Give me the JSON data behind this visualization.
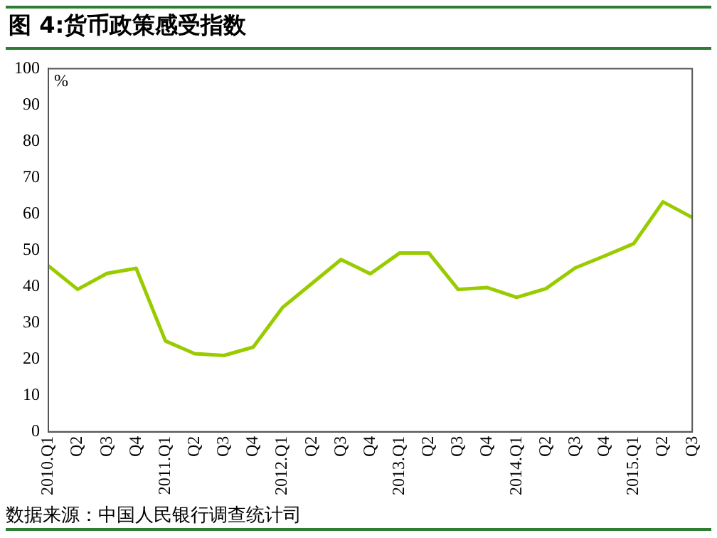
{
  "chart_data": {
    "type": "line",
    "title": "图 4:货币政策感受指数",
    "ylabel": "%",
    "annotations": [
      "数据来源：中国人民银行调查统计司"
    ],
    "categories": [
      "2010.Q1",
      "Q2",
      "Q3",
      "Q4",
      "2011.Q1",
      "Q2",
      "Q3",
      "Q4",
      "2012.Q1",
      "Q2",
      "Q3",
      "Q4",
      "2013.Q1",
      "Q2",
      "Q3",
      "Q4",
      "2014.Q1",
      "Q2",
      "Q3",
      "Q4",
      "2015.Q1",
      "Q2",
      "Q3"
    ],
    "series": [
      {
        "color": "#99cc00",
        "values": [
          45.7,
          39.2,
          43.6,
          45,
          25,
          21.5,
          21,
          23.3,
          34.2,
          40.8,
          47.4,
          43.5,
          49.2,
          49.2,
          39.2,
          39.7,
          37,
          39.4,
          45.1,
          48.4,
          51.8,
          63.3,
          59
        ]
      }
    ],
    "ylim": [
      0,
      100
    ],
    "yticks": [
      0,
      10,
      20,
      30,
      40,
      50,
      60,
      70,
      80,
      90,
      100
    ],
    "grid": false,
    "legend": false,
    "marker": "none",
    "line_style": "solid"
  }
}
